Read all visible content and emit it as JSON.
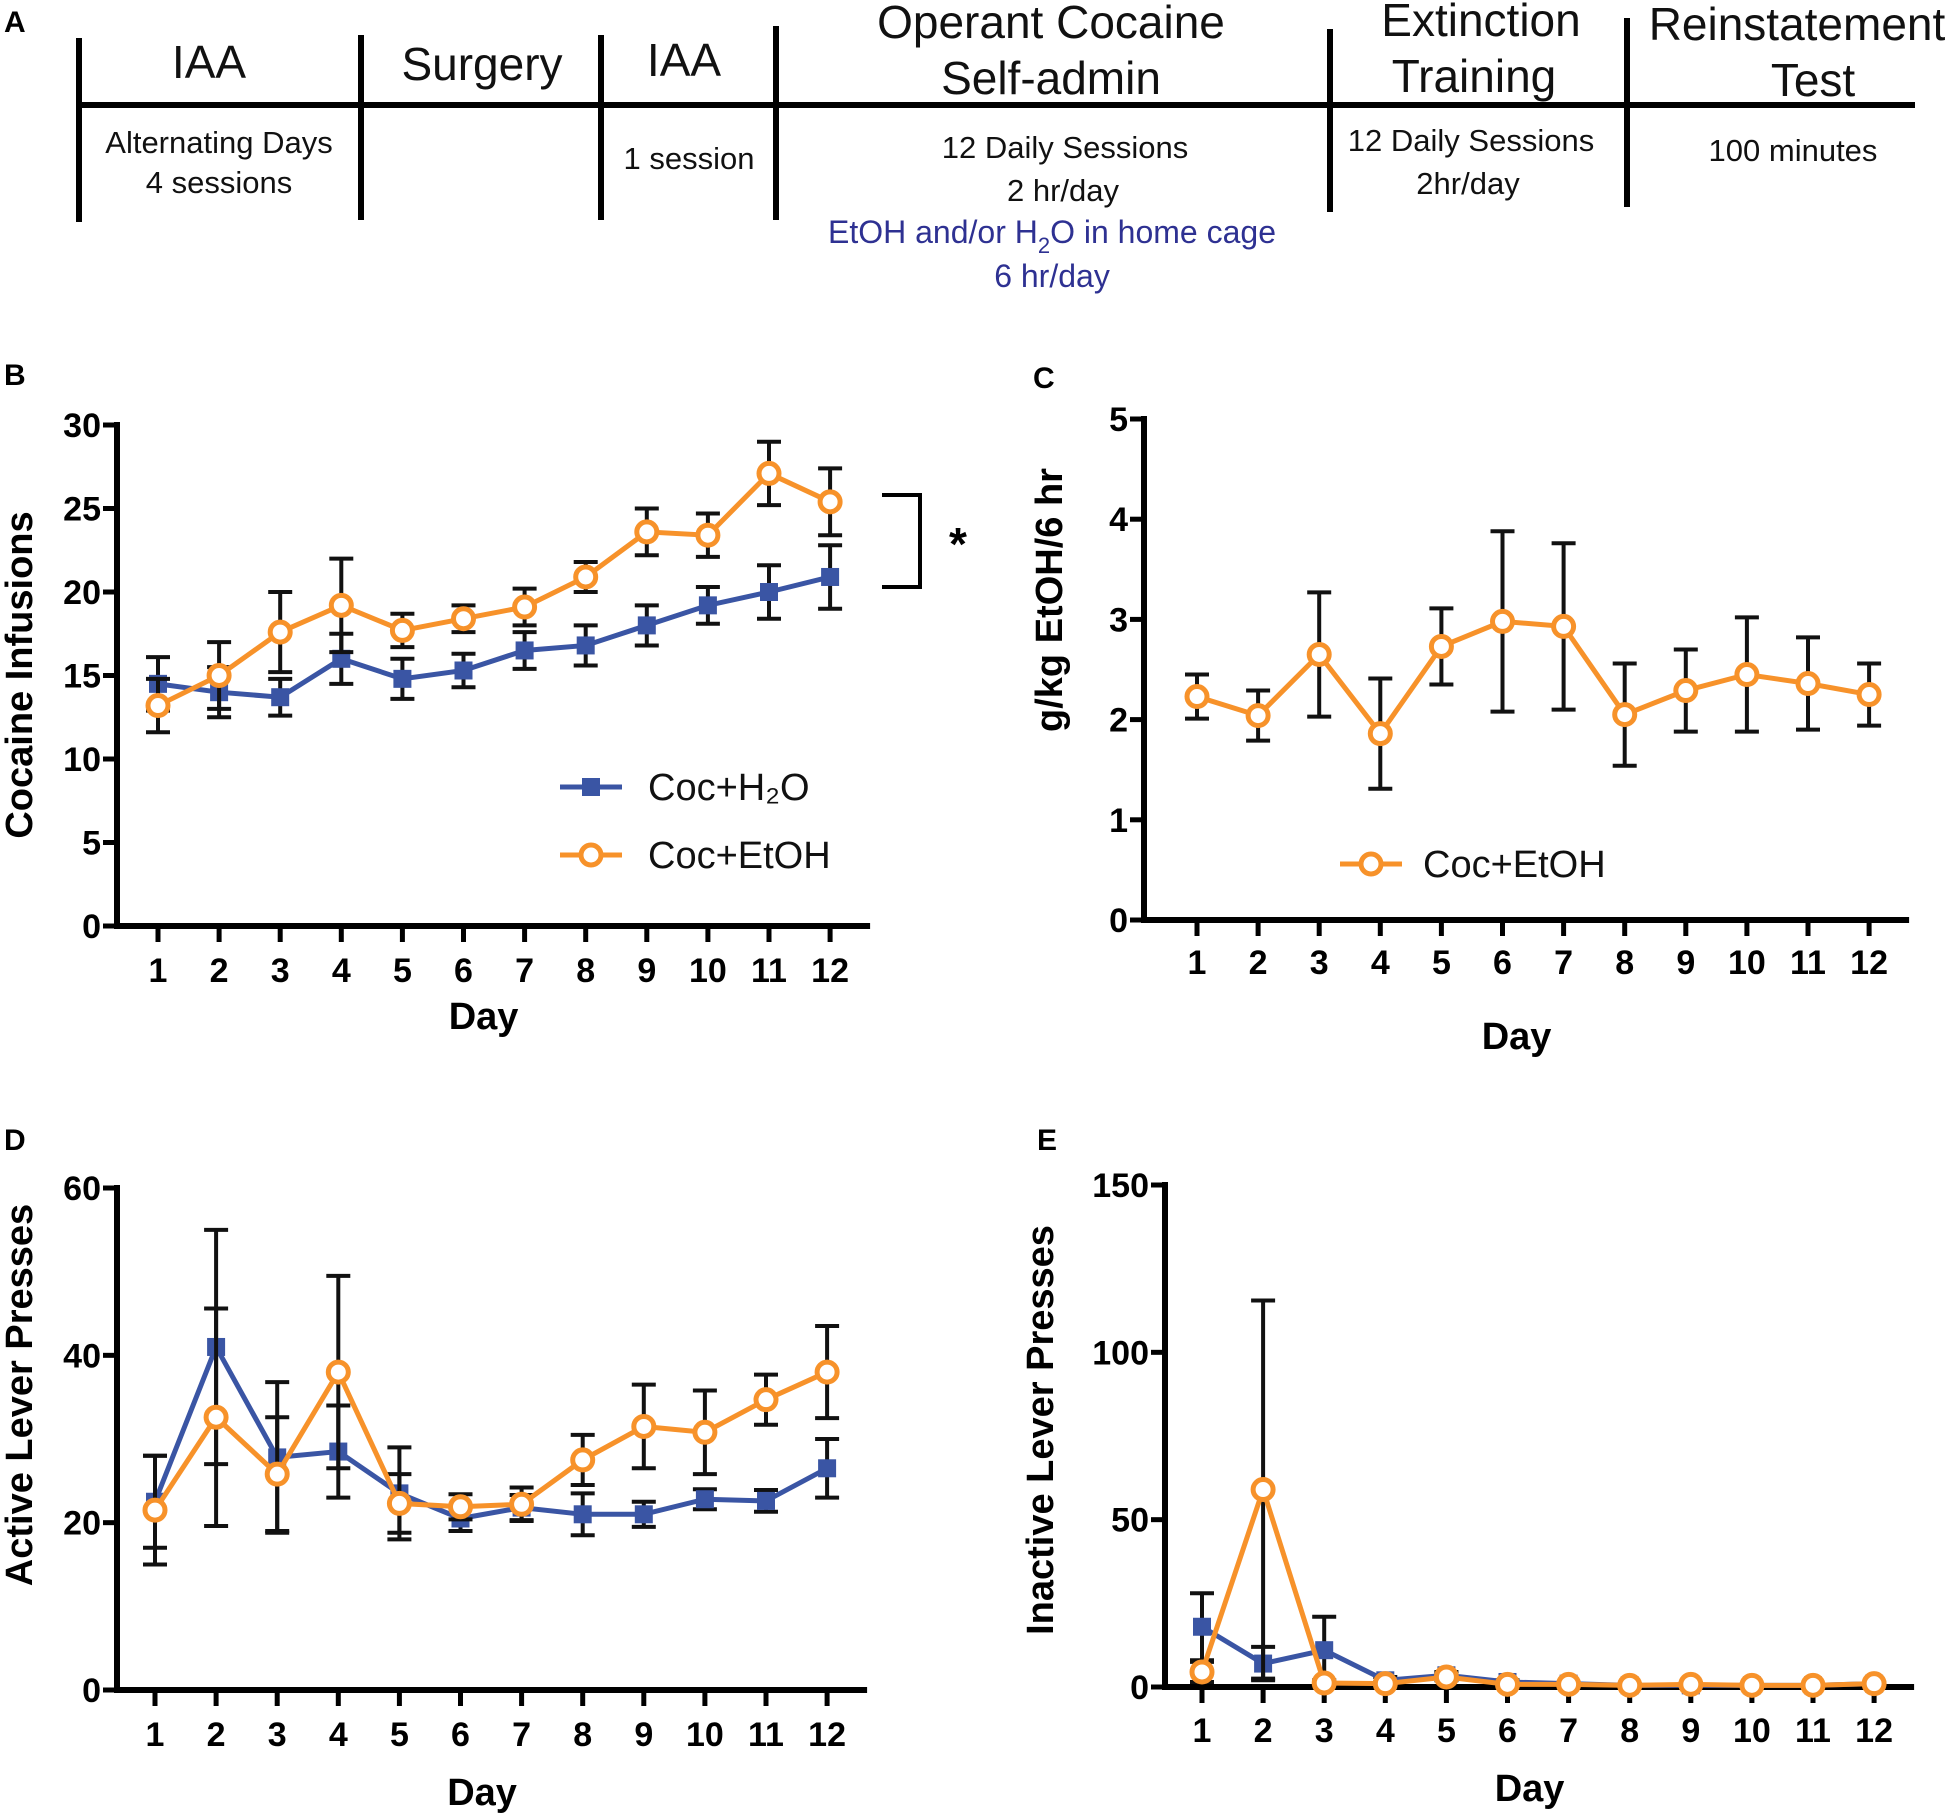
{
  "colors": {
    "blue": "#3a55a4",
    "orange": "#f7922a",
    "timeline_note": "#2e3192",
    "axis": "#000000"
  },
  "timeline": {
    "label": "A",
    "stages": [
      {
        "title": [
          "IAA"
        ],
        "detail": [
          "Alternating Days",
          "4 sessions"
        ]
      },
      {
        "title": [
          "Surgery"
        ],
        "detail": []
      },
      {
        "title": [
          "IAA"
        ],
        "detail": [
          "1 session"
        ]
      },
      {
        "title": [
          "Operant Cocaine",
          "Self-admin"
        ],
        "detail": [
          "12 Daily Sessions",
          "2 hr/day"
        ]
      },
      {
        "title": [
          "Extinction",
          "Training"
        ],
        "detail": [
          "12 Daily Sessions",
          "2hr/day"
        ]
      },
      {
        "title": [
          "Reinstatement",
          "Test"
        ],
        "detail": [
          "100 minutes"
        ]
      }
    ],
    "note": {
      "line1_pre": "EtOH and/or H",
      "line1_sub": "2",
      "line1_post": "O in home cage",
      "line2": "6 hr/day"
    }
  },
  "chart_data": [
    {
      "panel": "B",
      "type": "line",
      "xlabel": "Day",
      "ylabel": "Cocaine Infusions",
      "categories": [
        "1",
        "2",
        "3",
        "4",
        "5",
        "6",
        "7",
        "8",
        "9",
        "10",
        "11",
        "12"
      ],
      "ylim": [
        0,
        30
      ],
      "yticks": [
        0,
        5,
        10,
        15,
        20,
        25,
        30
      ],
      "significance": "*",
      "legend_position": "bottom-right",
      "series": [
        {
          "name": "Coc+H₂O",
          "marker": "square",
          "color": "#3a55a4",
          "values": [
            14.5,
            14.0,
            13.7,
            16.0,
            14.8,
            15.3,
            16.5,
            16.8,
            18.0,
            19.2,
            20.0,
            20.9
          ],
          "errors": [
            1.6,
            1.5,
            1.1,
            1.5,
            1.2,
            1.0,
            1.1,
            1.2,
            1.2,
            1.1,
            1.6,
            1.9
          ]
        },
        {
          "name": "Coc+EtOH",
          "marker": "circle",
          "color": "#f7922a",
          "values": [
            13.2,
            15.0,
            17.6,
            19.2,
            17.7,
            18.4,
            19.1,
            20.9,
            23.6,
            23.4,
            27.1,
            25.4
          ],
          "errors": [
            1.6,
            2.0,
            2.4,
            2.8,
            1.0,
            0.8,
            1.1,
            0.9,
            1.4,
            1.3,
            1.9,
            2.0
          ]
        }
      ]
    },
    {
      "panel": "C",
      "type": "line",
      "xlabel": "Day",
      "ylabel": "g/kg EtOH/6 hr",
      "categories": [
        "1",
        "2",
        "3",
        "4",
        "5",
        "6",
        "7",
        "8",
        "9",
        "10",
        "11",
        "12"
      ],
      "ylim": [
        0,
        5
      ],
      "yticks": [
        0,
        1,
        2,
        3,
        4,
        5
      ],
      "legend_position": "bottom-left",
      "series": [
        {
          "name": "Coc+EtOH",
          "marker": "circle",
          "color": "#f7922a",
          "values": [
            2.23,
            2.04,
            2.65,
            1.86,
            2.73,
            2.98,
            2.93,
            2.05,
            2.29,
            2.45,
            2.36,
            2.25
          ],
          "errors": [
            0.22,
            0.25,
            0.62,
            0.55,
            0.38,
            0.9,
            0.83,
            0.51,
            0.41,
            0.57,
            0.46,
            0.31
          ]
        }
      ]
    },
    {
      "panel": "D",
      "type": "line",
      "xlabel": "Day",
      "ylabel": "Active Lever Presses",
      "categories": [
        "1",
        "2",
        "3",
        "4",
        "5",
        "6",
        "7",
        "8",
        "9",
        "10",
        "11",
        "12"
      ],
      "ylim": [
        0,
        60
      ],
      "yticks": [
        0,
        20,
        40,
        60
      ],
      "series": [
        {
          "name": "Coc+H₂O",
          "marker": "square",
          "color": "#3a55a4",
          "values": [
            22.5,
            41.0,
            27.8,
            28.5,
            23.5,
            20.5,
            21.8,
            21.0,
            21.0,
            22.8,
            22.6,
            26.5
          ],
          "errors": [
            5.5,
            14.0,
            9.0,
            5.5,
            5.5,
            1.5,
            1.5,
            2.5,
            1.5,
            1.2,
            1.3,
            3.5
          ]
        },
        {
          "name": "Coc+EtOH",
          "marker": "circle",
          "color": "#f7922a",
          "values": [
            21.5,
            32.6,
            25.8,
            38.0,
            22.3,
            21.9,
            22.2,
            27.5,
            31.5,
            30.8,
            34.7,
            38.0
          ],
          "errors": [
            6.5,
            13.0,
            6.8,
            11.5,
            3.5,
            1.5,
            2.0,
            3.0,
            5.0,
            5.0,
            3.0,
            5.5
          ]
        }
      ]
    },
    {
      "panel": "E",
      "type": "line",
      "xlabel": "Day",
      "ylabel": "Inactive Lever  Presses",
      "categories": [
        "1",
        "2",
        "3",
        "4",
        "5",
        "6",
        "7",
        "8",
        "9",
        "10",
        "11",
        "12"
      ],
      "ylim": [
        0,
        150
      ],
      "yticks": [
        0,
        50,
        100,
        150
      ],
      "series": [
        {
          "name": "Coc+H₂O",
          "marker": "square",
          "color": "#3a55a4",
          "values": [
            18.0,
            7.0,
            11.0,
            2.0,
            3.5,
            1.5,
            1.0,
            0.5,
            0.5,
            0.5,
            0.5,
            1.0
          ],
          "errors": [
            10.0,
            5.0,
            10.0,
            1.0,
            1.0,
            0.5,
            0.3,
            0.3,
            0.3,
            0.3,
            0.3,
            0.3
          ]
        },
        {
          "name": "Coc+EtOH",
          "marker": "circle",
          "color": "#f7922a",
          "values": [
            4.5,
            59.0,
            1.2,
            1.0,
            3.0,
            0.8,
            0.8,
            0.5,
            0.8,
            0.5,
            0.5,
            1.0
          ],
          "errors": [
            3.0,
            56.5,
            0.8,
            0.5,
            1.0,
            0.4,
            0.3,
            0.3,
            0.3,
            0.3,
            0.3,
            0.3
          ]
        }
      ]
    }
  ]
}
